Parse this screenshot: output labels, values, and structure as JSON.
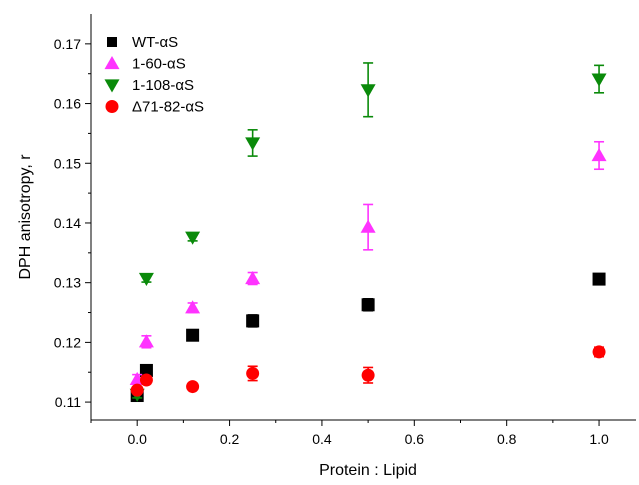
{
  "chart_data": {
    "type": "scatter",
    "title": "",
    "xlabel": "Protein : Lipid",
    "ylabel": "DPH anisotropy, r",
    "xlim": [
      -0.1,
      1.08
    ],
    "ylim": [
      0.107,
      0.175
    ],
    "xticks": [
      0.0,
      0.2,
      0.4,
      0.6,
      0.8,
      1.0
    ],
    "xtick_labels": [
      "0.0",
      "0.2",
      "0.4",
      "0.6",
      "0.8",
      "1.0"
    ],
    "yticks": [
      0.11,
      0.12,
      0.13,
      0.14,
      0.15,
      0.16,
      0.17
    ],
    "ytick_labels": [
      "0.11",
      "0.12",
      "0.13",
      "0.14",
      "0.15",
      "0.16",
      "0.17"
    ],
    "grid": false,
    "legend_position": "top-left",
    "series": [
      {
        "name": "WT-αS",
        "marker": "square",
        "color": "#000000",
        "points": [
          {
            "x": 0.0,
            "y": 0.1111,
            "err": 0.0006
          },
          {
            "x": 0.02,
            "y": 0.1153,
            "err": 0.0006
          },
          {
            "x": 0.12,
            "y": 0.1212,
            "err": 0.0008
          },
          {
            "x": 0.25,
            "y": 0.1236,
            "err": 0.001
          },
          {
            "x": 0.5,
            "y": 0.1263,
            "err": 0.001
          },
          {
            "x": 1.0,
            "y": 0.1306,
            "err": 0.0006
          }
        ]
      },
      {
        "name": "1-60-αS",
        "marker": "triangle-up",
        "color": "#ff33ff",
        "points": [
          {
            "x": 0.0,
            "y": 0.1138,
            "err": 0.0008
          },
          {
            "x": 0.02,
            "y": 0.1201,
            "err": 0.001
          },
          {
            "x": 0.12,
            "y": 0.1258,
            "err": 0.0008
          },
          {
            "x": 0.25,
            "y": 0.1307,
            "err": 0.001
          },
          {
            "x": 0.5,
            "y": 0.1393,
            "err": 0.0038
          },
          {
            "x": 1.0,
            "y": 0.1513,
            "err": 0.0023
          }
        ]
      },
      {
        "name": "1-108-αS",
        "marker": "triangle-down",
        "color": "#0a8a0a",
        "points": [
          {
            "x": 0.0,
            "y": 0.1113,
            "err": 0.0006
          },
          {
            "x": 0.02,
            "y": 0.1307,
            "err": 0.0006
          },
          {
            "x": 0.12,
            "y": 0.1376,
            "err": 0.0006
          },
          {
            "x": 0.25,
            "y": 0.1534,
            "err": 0.0022
          },
          {
            "x": 0.5,
            "y": 0.1623,
            "err": 0.0045
          },
          {
            "x": 1.0,
            "y": 0.1641,
            "err": 0.0023
          }
        ]
      },
      {
        "name": "Δ71-82-αS",
        "marker": "circle",
        "color": "#ff0000",
        "points": [
          {
            "x": 0.0,
            "y": 0.112,
            "err": 0.0005
          },
          {
            "x": 0.02,
            "y": 0.1137,
            "err": 0.0006
          },
          {
            "x": 0.12,
            "y": 0.1126,
            "err": 0.0005
          },
          {
            "x": 0.25,
            "y": 0.1148,
            "err": 0.0012
          },
          {
            "x": 0.5,
            "y": 0.1145,
            "err": 0.0013
          },
          {
            "x": 1.0,
            "y": 0.1184,
            "err": 0.0008
          }
        ]
      }
    ]
  }
}
